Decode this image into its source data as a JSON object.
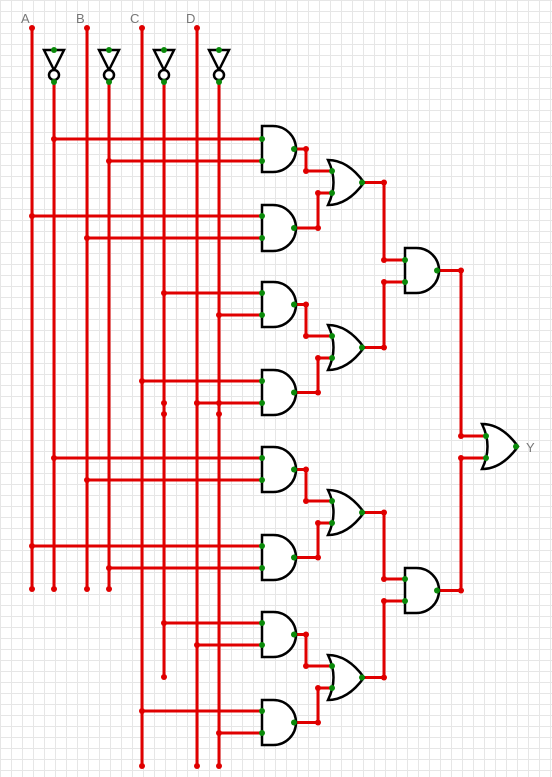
{
  "inputs": {
    "a": {
      "label": "A"
    },
    "b": {
      "label": "B"
    },
    "c": {
      "label": "C"
    },
    "d": {
      "label": "D"
    }
  },
  "output": {
    "label": "Y"
  },
  "colors": {
    "wire": "#e00000",
    "pin": "#0a8a0a",
    "gate_stroke": "#000000",
    "grid": "#e6e6e6",
    "label": "#777777"
  }
}
